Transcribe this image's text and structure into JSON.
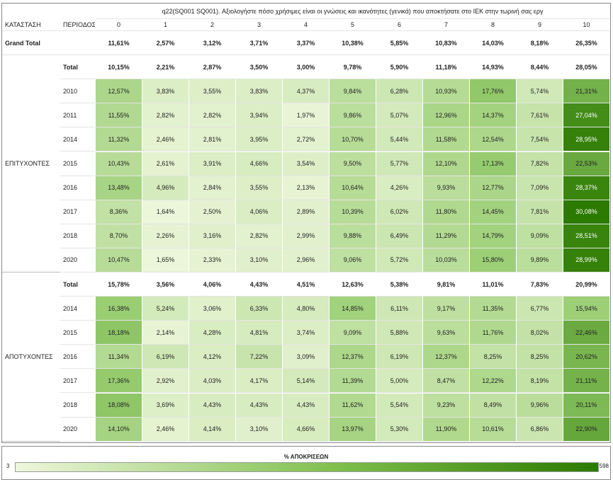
{
  "header": {
    "question": "q22(SQ001 SQ001). Αξιολογήστε πόσο χρήσιμες είναι οι γνώσεις και ικανότητες (γενικά) που αποκτήσατε στο ΙΕΚ στην τωρινή σας εργ",
    "columns": [
      "ΚΑΤΑΣΤΑΣΗ",
      "ΠΕΡΙΟΔΟΣ"
    ],
    "scores": [
      "0",
      "1",
      "2",
      "3",
      "4",
      "5",
      "6",
      "7",
      "8",
      "9",
      "10"
    ]
  },
  "grand_total": {
    "label": "Grand Total",
    "values": [
      "11,61%",
      "2,57%",
      "3,12%",
      "3,71%",
      "3,37%",
      "10,38%",
      "5,85%",
      "10,83%",
      "14,03%",
      "8,18%",
      "26,35%"
    ]
  },
  "groups": [
    {
      "name": "ΕΠΙΤΥΧΟΝΤΕΣ",
      "rows": [
        {
          "period": "Total",
          "values": [
            "10,15%",
            "2,21%",
            "2,87%",
            "3,50%",
            "3,00%",
            "9,78%",
            "5,90%",
            "11,18%",
            "14,93%",
            "8,44%",
            "28,05%"
          ]
        },
        {
          "period": "2010",
          "values": [
            "12,57%",
            "3,83%",
            "3,55%",
            "3,83%",
            "4,37%",
            "9,84%",
            "6,28%",
            "10,93%",
            "17,76%",
            "5,74%",
            "21,31%"
          ]
        },
        {
          "period": "2011",
          "values": [
            "11,55%",
            "2,82%",
            "2,82%",
            "3,94%",
            "1,97%",
            "9,86%",
            "5,07%",
            "12,96%",
            "14,37%",
            "7,61%",
            "27,04%"
          ]
        },
        {
          "period": "2014",
          "values": [
            "11,32%",
            "2,46%",
            "2,81%",
            "3,95%",
            "2,72%",
            "10,70%",
            "5,44%",
            "11,58%",
            "12,54%",
            "7,54%",
            "28,95%"
          ]
        },
        {
          "period": "2015",
          "values": [
            "10,43%",
            "2,61%",
            "3,91%",
            "4,66%",
            "3,54%",
            "9,50%",
            "5,77%",
            "12,10%",
            "17,13%",
            "7,82%",
            "22,53%"
          ]
        },
        {
          "period": "2016",
          "values": [
            "13,48%",
            "4,96%",
            "2,84%",
            "3,55%",
            "2,13%",
            "10,64%",
            "4,26%",
            "9,93%",
            "12,77%",
            "7,09%",
            "28,37%"
          ]
        },
        {
          "period": "2017",
          "values": [
            "8,36%",
            "1,64%",
            "2,50%",
            "4,06%",
            "2,89%",
            "10,39%",
            "6,02%",
            "11,80%",
            "14,45%",
            "7,81%",
            "30,08%"
          ]
        },
        {
          "period": "2018",
          "values": [
            "8,70%",
            "2,26%",
            "3,16%",
            "2,82%",
            "2,99%",
            "9,88%",
            "6,49%",
            "11,29%",
            "14,79%",
            "9,09%",
            "28,51%"
          ]
        },
        {
          "period": "2020",
          "values": [
            "10,47%",
            "1,65%",
            "2,33%",
            "3,10%",
            "2,96%",
            "9,06%",
            "5,72%",
            "10,03%",
            "15,80%",
            "9,89%",
            "28,99%"
          ]
        }
      ]
    },
    {
      "name": "ΑΠΟΤΥΧΟΝΤΕΣ",
      "rows": [
        {
          "period": "Total",
          "values": [
            "15,78%",
            "3,56%",
            "4,06%",
            "4,43%",
            "4,51%",
            "12,63%",
            "5,38%",
            "9,81%",
            "11,01%",
            "7,83%",
            "20,99%"
          ]
        },
        {
          "period": "2014",
          "values": [
            "16,38%",
            "5,24%",
            "3,06%",
            "6,33%",
            "4,80%",
            "14,85%",
            "6,11%",
            "9,17%",
            "11,35%",
            "6,77%",
            "15,94%"
          ]
        },
        {
          "period": "2015",
          "values": [
            "18,18%",
            "2,14%",
            "4,28%",
            "4,81%",
            "3,74%",
            "9,09%",
            "5,88%",
            "9,63%",
            "11,76%",
            "8,02%",
            "22,46%"
          ]
        },
        {
          "period": "2016",
          "values": [
            "11,34%",
            "6,19%",
            "4,12%",
            "7,22%",
            "3,09%",
            "12,37%",
            "6,19%",
            "12,37%",
            "8,25%",
            "8,25%",
            "20,62%"
          ]
        },
        {
          "period": "2017",
          "values": [
            "17,36%",
            "2,92%",
            "4,03%",
            "4,17%",
            "5,14%",
            "11,39%",
            "5,00%",
            "8,47%",
            "12,22%",
            "8,19%",
            "21,11%"
          ]
        },
        {
          "period": "2018",
          "values": [
            "18,08%",
            "3,69%",
            "4,43%",
            "4,43%",
            "4,43%",
            "11,62%",
            "5,54%",
            "9,23%",
            "8,49%",
            "9,96%",
            "20,11%"
          ]
        },
        {
          "period": "2020",
          "values": [
            "14,10%",
            "2,46%",
            "4,14%",
            "3,10%",
            "4,66%",
            "13,97%",
            "5,30%",
            "11,90%",
            "10,61%",
            "6,86%",
            "22,90%"
          ]
        }
      ]
    }
  ],
  "legend": {
    "title": "% ΑΠΟΚΡΙΣΕΩΝ",
    "min": 3,
    "max": 598
  }
}
